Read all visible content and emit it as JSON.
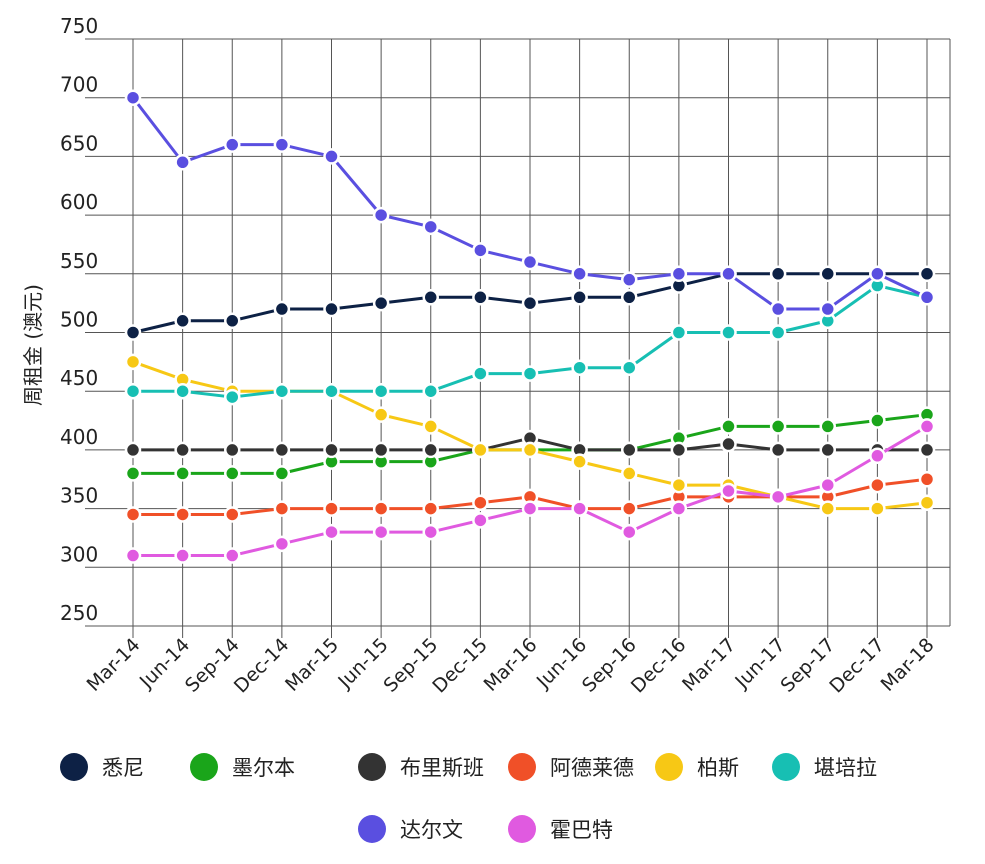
{
  "chart_data": {
    "type": "line",
    "ylabel": "周租金 (澳元)",
    "xlabel": "",
    "ylim": [
      250,
      750
    ],
    "yticks": [
      250,
      300,
      350,
      400,
      450,
      500,
      550,
      600,
      650,
      700,
      750
    ],
    "categories": [
      "Mar-14",
      "Jun-14",
      "Sep-14",
      "Dec-14",
      "Mar-15",
      "Jun-15",
      "Sep-15",
      "Dec-15",
      "Mar-16",
      "Jun-16",
      "Sep-16",
      "Dec-16",
      "Mar-17",
      "Jun-17",
      "Sep-17",
      "Dec-17",
      "Mar-18"
    ],
    "grid": true,
    "legend_position": "bottom",
    "series": [
      {
        "name": "悉尼",
        "color": "#0d2145",
        "values": [
          500,
          510,
          510,
          520,
          520,
          525,
          530,
          530,
          525,
          530,
          530,
          540,
          550,
          550,
          550,
          550,
          550
        ]
      },
      {
        "name": "墨尔本",
        "color": "#1aa51a",
        "values": [
          380,
          380,
          380,
          380,
          390,
          390,
          390,
          400,
          400,
          400,
          400,
          410,
          420,
          420,
          420,
          425,
          430
        ]
      },
      {
        "name": "布里斯班",
        "color": "#333333",
        "values": [
          400,
          400,
          400,
          400,
          400,
          400,
          400,
          400,
          410,
          400,
          400,
          400,
          405,
          400,
          400,
          400,
          400
        ]
      },
      {
        "name": "阿德莱德",
        "color": "#f05028",
        "values": [
          345,
          345,
          345,
          350,
          350,
          350,
          350,
          355,
          360,
          350,
          350,
          360,
          360,
          360,
          360,
          370,
          375
        ]
      },
      {
        "name": "柏斯",
        "color": "#f7c815",
        "values": [
          475,
          460,
          450,
          450,
          450,
          430,
          420,
          400,
          400,
          390,
          380,
          370,
          370,
          360,
          350,
          350,
          355
        ]
      },
      {
        "name": "堪培拉",
        "color": "#17bfb3",
        "values": [
          450,
          450,
          445,
          450,
          450,
          450,
          450,
          465,
          465,
          470,
          470,
          500,
          500,
          500,
          510,
          540,
          530
        ]
      },
      {
        "name": "达尔文",
        "color": "#5a4fe0",
        "values": [
          700,
          645,
          660,
          660,
          650,
          600,
          590,
          570,
          560,
          550,
          545,
          550,
          550,
          520,
          520,
          550,
          530
        ]
      },
      {
        "name": "霍巴特",
        "color": "#e05ae0",
        "values": [
          310,
          310,
          310,
          320,
          330,
          330,
          330,
          340,
          350,
          350,
          330,
          350,
          365,
          360,
          370,
          395,
          420
        ]
      }
    ]
  }
}
